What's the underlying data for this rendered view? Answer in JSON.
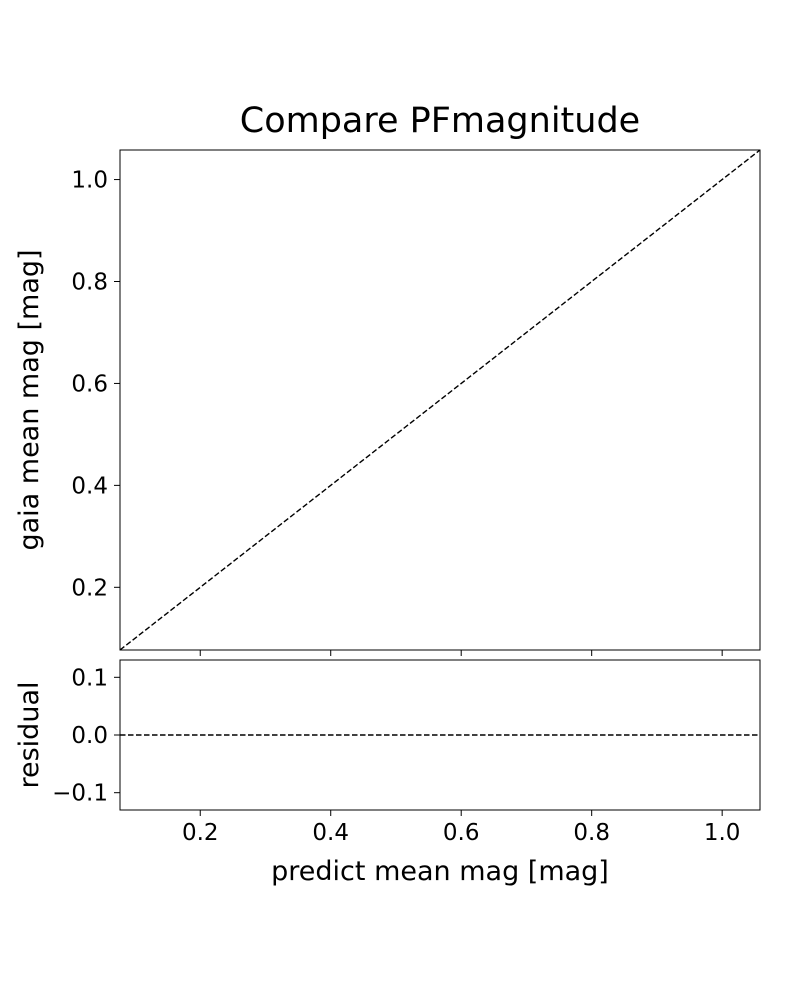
{
  "chart_data": {
    "type": "line",
    "title": "Compare PFmagnitude",
    "panels": [
      {
        "name": "main",
        "xlabel": "",
        "ylabel": "gaia mean mag [mag]",
        "xlim": [
          0.077,
          1.058
        ],
        "ylim": [
          0.077,
          1.058
        ],
        "xticks": [
          0.2,
          0.4,
          0.6,
          0.8,
          1.0
        ],
        "xtick_labels_shown": false,
        "yticks": [
          0.2,
          0.4,
          0.6,
          0.8,
          1.0
        ],
        "ytick_labels": [
          "0.2",
          "0.4",
          "0.6",
          "0.8",
          "1.0"
        ],
        "grid": false,
        "series": [
          {
            "style": "dashed",
            "color": "#000000",
            "x": [
              0.077,
              1.058
            ],
            "y": [
              0.077,
              1.058
            ]
          }
        ]
      },
      {
        "name": "residual",
        "xlabel": "predict mean mag [mag]",
        "ylabel": "residual",
        "xlim": [
          0.077,
          1.058
        ],
        "ylim": [
          -0.13,
          0.13
        ],
        "xticks": [
          0.2,
          0.4,
          0.6,
          0.8,
          1.0
        ],
        "xtick_labels": [
          "0.2",
          "0.4",
          "0.6",
          "0.8",
          "1.0"
        ],
        "yticks": [
          0.1,
          0.0,
          -0.1
        ],
        "ytick_labels": [
          "0.1",
          "0.0",
          "−0.1"
        ],
        "grid": false,
        "series": [
          {
            "style": "dashed",
            "color": "#000000",
            "x": [
              0.077,
              1.058
            ],
            "y": [
              0.0,
              0.0
            ]
          }
        ]
      }
    ]
  }
}
